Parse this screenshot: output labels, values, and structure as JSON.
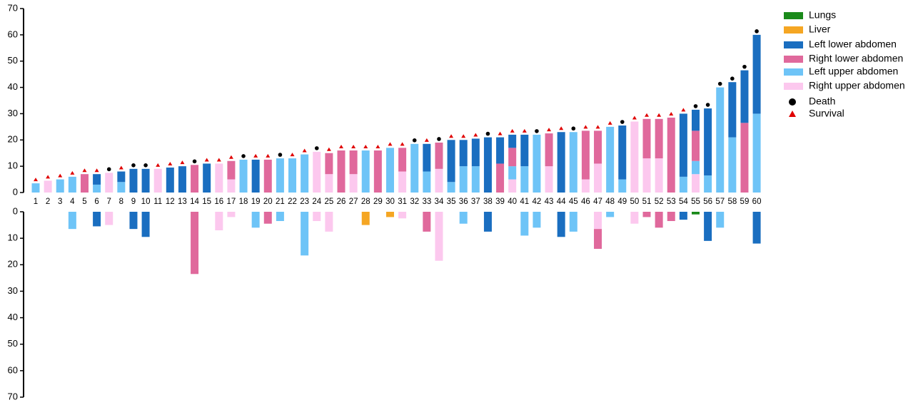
{
  "chart_data": {
    "type": "bar",
    "categories": [
      "1",
      "2",
      "3",
      "4",
      "5",
      "6",
      "7",
      "8",
      "9",
      "10",
      "11",
      "12",
      "13",
      "14",
      "15",
      "16",
      "17",
      "18",
      "19",
      "20",
      "21",
      "22",
      "23",
      "24",
      "25",
      "26",
      "27",
      "28",
      "29",
      "30",
      "31",
      "32",
      "33",
      "34",
      "35",
      "36",
      "37",
      "38",
      "39",
      "40",
      "41",
      "42",
      "43",
      "44",
      "45",
      "46",
      "47",
      "48",
      "49",
      "50",
      "51",
      "52",
      "53",
      "54",
      "55",
      "56",
      "57",
      "58",
      "59",
      "60"
    ],
    "series": [
      {
        "name": "Lungs",
        "color": "#1a8a1a",
        "values": [
          0,
          0,
          0,
          0,
          0,
          0,
          0,
          0,
          0,
          0,
          0,
          0,
          0,
          0,
          0,
          0,
          0,
          0,
          0,
          0,
          0,
          0,
          0,
          0,
          0,
          0,
          0,
          0,
          0,
          0,
          0,
          0,
          0,
          0,
          0,
          0,
          0,
          0,
          0,
          0,
          0,
          0,
          0,
          0,
          0,
          0,
          0,
          0,
          0,
          0,
          0,
          0,
          0,
          0,
          0,
          0,
          0,
          0,
          0,
          0
        ],
        "below_values": [
          0,
          0,
          0,
          0,
          0,
          0,
          0,
          0,
          0,
          0,
          0,
          0,
          0,
          0,
          0,
          0,
          0,
          0,
          0,
          0,
          0,
          0,
          0,
          0,
          0,
          0,
          0,
          0,
          0,
          0,
          0,
          0,
          0,
          0,
          0,
          0,
          0,
          0,
          0,
          0,
          0,
          0,
          0,
          0,
          0,
          0,
          0,
          0,
          0,
          0,
          0,
          0,
          0,
          0,
          1,
          0,
          0,
          0,
          0,
          0
        ]
      },
      {
        "name": "Liver",
        "color": "#f5a623",
        "values": [
          0,
          0,
          0,
          0,
          0,
          0,
          0,
          0,
          0,
          0,
          0,
          0,
          0,
          0,
          0,
          0,
          0,
          0,
          0,
          0,
          0,
          0,
          0,
          0,
          0,
          0,
          0,
          0,
          0,
          0,
          0,
          0,
          0,
          0,
          0,
          0,
          0,
          0,
          0,
          0,
          0,
          0,
          0,
          0,
          0,
          0,
          0,
          0,
          0,
          0,
          0,
          0,
          0,
          0,
          0,
          0,
          0,
          0,
          0,
          0
        ],
        "below_values": [
          0,
          0,
          0,
          0,
          0,
          0,
          0,
          0,
          0,
          0,
          0,
          0,
          0,
          0,
          0,
          0,
          0,
          0,
          0,
          0,
          0,
          0,
          0,
          0,
          0,
          0,
          0,
          5,
          0,
          2,
          0,
          0,
          0,
          0,
          0,
          0,
          0,
          0,
          0,
          0,
          0,
          0,
          0,
          0,
          0,
          0,
          0,
          0,
          0,
          0,
          0,
          0,
          0,
          0,
          0,
          0,
          0,
          0,
          0,
          0
        ]
      },
      {
        "name": "Left lower abdomen",
        "color": "#1a6ec0",
        "values": [
          0,
          0,
          0,
          0,
          0,
          4,
          0,
          4,
          9,
          9,
          0,
          9.5,
          10,
          0,
          11,
          0,
          0,
          0,
          12.5,
          0,
          0,
          0,
          0,
          0,
          0,
          0,
          0,
          0,
          0,
          0,
          0,
          0,
          10.5,
          0,
          16,
          10,
          10.5,
          21,
          10,
          5,
          12,
          0,
          0,
          23,
          0,
          0,
          0,
          0,
          20.5,
          0,
          0,
          0,
          0,
          24,
          8,
          25.5,
          0,
          21,
          20,
          30
        ],
        "below_values": [
          0,
          0,
          0,
          0,
          0,
          5.5,
          0,
          0,
          6.5,
          9.5,
          0,
          0,
          0,
          0,
          0,
          0,
          0,
          0,
          0,
          0,
          0,
          0,
          0,
          0,
          0,
          0,
          0,
          0,
          0,
          0,
          0,
          0,
          0,
          0,
          0,
          0,
          0,
          7.5,
          0,
          0,
          0,
          0,
          0,
          9.5,
          0,
          0,
          0,
          0,
          0,
          0,
          0,
          0,
          0,
          3,
          0,
          11,
          0,
          0,
          0,
          12
        ]
      },
      {
        "name": "Right lower abdomen",
        "color": "#e0699c",
        "values": [
          0,
          0,
          0,
          0,
          7,
          0,
          0,
          0,
          0,
          0,
          0,
          0,
          0,
          10.5,
          0,
          0,
          7,
          0,
          0,
          12.5,
          0,
          0,
          0,
          0,
          8,
          16,
          9,
          0,
          16,
          0,
          9,
          0,
          0,
          10,
          0,
          0,
          0,
          0,
          11,
          7,
          0,
          0,
          12.5,
          0,
          0,
          18.5,
          12.5,
          0,
          0,
          0,
          15,
          15,
          28.5,
          0,
          11.5,
          0,
          0,
          0,
          26.5,
          0
        ],
        "below_values": [
          0,
          0,
          0,
          0,
          0,
          0,
          0,
          0,
          0,
          0,
          0,
          0,
          0,
          23.5,
          0,
          0,
          0,
          0,
          0,
          4.5,
          0,
          0,
          0,
          0,
          0,
          0,
          0,
          0,
          0,
          0,
          0,
          0,
          7.5,
          0,
          0,
          0,
          0,
          0,
          0,
          0,
          0,
          0,
          0,
          0,
          0,
          0,
          7.5,
          0,
          0,
          0,
          2,
          6,
          3.5,
          0,
          0,
          0,
          0,
          0,
          0,
          0
        ]
      },
      {
        "name": "Left upper abdomen",
        "color": "#6ec4f7",
        "values": [
          3.5,
          0,
          5,
          6,
          0,
          3,
          0,
          4,
          0,
          0,
          0,
          0,
          0,
          0,
          0,
          0,
          0,
          12.5,
          0,
          0,
          13,
          13,
          14.5,
          0,
          0,
          0,
          0,
          16,
          0,
          17,
          0,
          18.5,
          8,
          0,
          4,
          10,
          10,
          0,
          0,
          5,
          10,
          22,
          0,
          0,
          23,
          0,
          0,
          25,
          5,
          0,
          0,
          0,
          0,
          6,
          5,
          6.5,
          40,
          21,
          0,
          30
        ],
        "below_values": [
          0,
          0,
          0,
          6.5,
          0,
          0,
          0,
          0,
          0,
          0,
          0,
          0,
          0,
          0,
          0,
          0,
          0,
          0,
          6,
          0,
          3.5,
          0,
          16.5,
          0,
          0,
          0,
          0,
          0,
          0,
          0,
          0,
          0,
          0,
          0,
          0,
          4.5,
          0,
          0,
          0,
          0,
          9,
          6,
          0,
          0,
          7.5,
          0,
          0,
          2,
          0,
          0,
          0,
          0,
          0,
          0,
          0,
          0,
          6,
          0,
          0,
          0
        ]
      },
      {
        "name": "Right upper abdomen",
        "color": "#fcc8ee",
        "values": [
          0,
          4.5,
          0,
          0,
          0,
          0,
          7.5,
          0,
          0,
          0,
          9,
          0,
          0,
          0,
          0,
          11,
          5,
          0,
          0,
          0,
          0,
          0,
          0,
          15.5,
          7,
          0,
          7,
          0,
          0,
          0,
          8,
          0,
          0,
          9,
          0,
          0,
          0,
          0,
          0,
          5,
          0,
          0,
          10,
          0,
          0,
          5,
          11,
          0,
          0,
          27,
          13,
          13,
          0,
          0,
          7,
          0,
          0,
          0,
          0,
          0
        ],
        "below_values": [
          0,
          0,
          0,
          0,
          0,
          0,
          5,
          0,
          0,
          0,
          0,
          0,
          0,
          0,
          0,
          7,
          2,
          0,
          0,
          0,
          0,
          0,
          0,
          3.5,
          7.5,
          0,
          0,
          0,
          0,
          0,
          2.5,
          0,
          0,
          18.5,
          0,
          0,
          0,
          0,
          0,
          0,
          0,
          0,
          0,
          0,
          0,
          0,
          6.5,
          0,
          0,
          4.5,
          0,
          0,
          0,
          0,
          0,
          0,
          0,
          0,
          0,
          0
        ]
      }
    ],
    "markers": [
      {
        "name": "Death",
        "color": "#000000",
        "shape": "circle"
      },
      {
        "name": "Survival",
        "color": "#e00000",
        "shape": "triangle"
      }
    ],
    "outcome": [
      1,
      1,
      1,
      1,
      1,
      1,
      0,
      1,
      0,
      0,
      1,
      1,
      1,
      0,
      1,
      1,
      1,
      0,
      1,
      1,
      0,
      1,
      1,
      0,
      1,
      1,
      1,
      1,
      1,
      1,
      1,
      0,
      1,
      0,
      1,
      1,
      1,
      0,
      1,
      1,
      1,
      0,
      1,
      1,
      0,
      1,
      1,
      1,
      0,
      1,
      1,
      1,
      1,
      1,
      0,
      0,
      0,
      0,
      0,
      0
    ],
    "ylim": [
      0,
      70
    ],
    "yticks": [
      0,
      10,
      20,
      30,
      40,
      50,
      60,
      70
    ],
    "lower_ylim": [
      0,
      70
    ],
    "lower_yticks": [
      0,
      10,
      20,
      30,
      40,
      50,
      60,
      70
    ]
  }
}
